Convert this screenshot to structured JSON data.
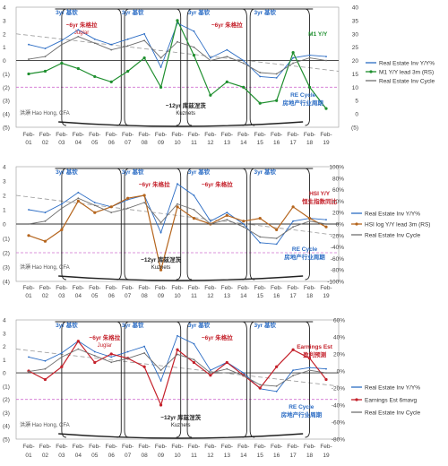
{
  "colors": {
    "blue": "#2b6cc4",
    "red": "#c4202a",
    "green": "#1f8f2f",
    "gray": "#6f6f6f",
    "brown": "#b5651d",
    "purple": "#8d2a8a",
    "pink": "#d070d0"
  },
  "chart_data": [
    {
      "type": "line",
      "x": [
        "Feb-01",
        "Feb-02",
        "Feb-03",
        "Feb-04",
        "Feb-05",
        "Feb-06",
        "Feb-07",
        "Feb-08",
        "Feb-09",
        "Feb-10",
        "Feb-11",
        "Feb-12",
        "Feb-13",
        "Feb-14",
        "Feb-15",
        "Feb-16",
        "Feb-17",
        "Feb-18",
        "Feb-19"
      ],
      "ylim_left": [
        -5,
        4
      ],
      "yticks_left": [
        "4",
        "3",
        "2",
        "1",
        "0",
        "(1)",
        "(2)",
        "(3)",
        "(4)",
        "(5)"
      ],
      "ylim_right": [
        -5,
        40
      ],
      "yticks_right": [
        "40",
        "35",
        "30",
        "25",
        "20",
        "15",
        "10",
        "5",
        "0",
        "(5)"
      ],
      "series": [
        {
          "name": "Real Estate Inv Y/Y%",
          "axis": "left",
          "values": [
            1.2,
            0.9,
            1.5,
            2.3,
            1.6,
            1.2,
            1.6,
            2.0,
            -0.5,
            2.8,
            2.2,
            0.2,
            0.8,
            0.0,
            -1.2,
            -1.3,
            0.2,
            0.4,
            0.3
          ]
        },
        {
          "name": "M1 Y/Y lead 3m (RS)",
          "axis": "right",
          "values": [
            15,
            16,
            19,
            17,
            14,
            12,
            16,
            21,
            10,
            35,
            22,
            7,
            12,
            10,
            4,
            5,
            23,
            10,
            2
          ]
        },
        {
          "name": "Real Estate Inv Cycle",
          "axis": "left",
          "values": [
            0.1,
            0.3,
            1.2,
            1.8,
            1.3,
            0.8,
            1.1,
            1.5,
            0.2,
            1.4,
            1.0,
            0.0,
            0.3,
            -0.2,
            -0.9,
            -1.0,
            -0.2,
            0.2,
            0.0
          ]
        }
      ],
      "trend": {
        "from": 2.0,
        "to": -0.8
      },
      "annotations": [
        {
          "text": "3yr 基钦",
          "x": 2.3
        },
        {
          "text": "3yr 基钦",
          "x": 6.3
        },
        {
          "text": "3yr 基钦",
          "x": 10.3
        },
        {
          "text": "3yr 基钦",
          "x": 14.3
        },
        {
          "text": "~6yr 朱格拉",
          "x": 3.2,
          "sub": "Juglar"
        },
        {
          "text": "~6yr 朱格拉",
          "x": 12.0,
          "sub": ""
        },
        {
          "text": "M1 Y/Y",
          "x": 17.5
        },
        {
          "text": "~12yr 库兹涅茨",
          "x": 9.5,
          "sub": "Kuznets"
        },
        {
          "text": "RE Cycle",
          "x": 16.6
        },
        {
          "text": "房地产行业周期",
          "x": 16.6
        }
      ],
      "author": "洪灝 Hao Hong, CFA"
    },
    {
      "type": "line",
      "x": [
        "Feb-01",
        "Feb-02",
        "Feb-03",
        "Feb-04",
        "Feb-05",
        "Feb-06",
        "Feb-07",
        "Feb-08",
        "Feb-09",
        "Feb-10",
        "Feb-11",
        "Feb-12",
        "Feb-13",
        "Feb-14",
        "Feb-15",
        "Feb-16",
        "Feb-17",
        "Feb-18",
        "Feb-19"
      ],
      "ylim_left": [
        -4,
        4
      ],
      "yticks_left": [
        "4",
        "3",
        "2",
        "1",
        "0",
        "(1)",
        "(2)",
        "(3)",
        "(4)"
      ],
      "ylim_right": [
        -100,
        100
      ],
      "yticks_right": [
        "100%",
        "80%",
        "60%",
        "40%",
        "20%",
        "0%",
        "-20%",
        "-40%",
        "-60%",
        "-80%",
        "-100%"
      ],
      "series": [
        {
          "name": "Real Estate Inv Y/Y%",
          "axis": "left",
          "values": [
            1.0,
            0.8,
            1.4,
            2.2,
            1.5,
            1.2,
            1.7,
            2.0,
            -0.6,
            2.8,
            2.0,
            0.2,
            0.8,
            0.0,
            -1.3,
            -1.4,
            0.2,
            0.4,
            0.3
          ]
        },
        {
          "name": "HSI log Y/Y lead 3m (RS)",
          "axis": "right",
          "values": [
            -20,
            -30,
            -10,
            40,
            20,
            30,
            45,
            50,
            -80,
            30,
            10,
            0,
            15,
            5,
            10,
            -10,
            30,
            10,
            -5
          ]
        },
        {
          "name": "Real Estate Inv Cycle",
          "axis": "left",
          "values": [
            0.0,
            0.2,
            1.1,
            1.8,
            1.3,
            0.8,
            1.1,
            1.5,
            0.1,
            1.4,
            1.0,
            0.0,
            0.3,
            -0.2,
            -0.9,
            -1.0,
            -0.2,
            0.2,
            0.0
          ]
        }
      ],
      "trend": {
        "from": 2.0,
        "to": -0.8
      },
      "annotations": [
        {
          "text": "3yr 基钦",
          "x": 2.3
        },
        {
          "text": "3yr 基钦",
          "x": 6.3
        },
        {
          "text": "3yr 基钦",
          "x": 10.3
        },
        {
          "text": "3yr 基钦",
          "x": 14.3
        },
        {
          "text": "~6yr 朱格拉",
          "x": 7.6
        },
        {
          "text": "~6yr 朱格拉",
          "x": 11.4
        },
        {
          "text": "HSI Y/Y",
          "x": 17.6
        },
        {
          "text": "恒生指数同比",
          "x": 17.6
        },
        {
          "text": "~12yr 库兹涅茨",
          "x": 8.0,
          "sub": "Kuznets"
        },
        {
          "text": "RE Cycle",
          "x": 16.7
        },
        {
          "text": "房地产行业周期",
          "x": 16.7
        }
      ],
      "author": "洪灝 Hao Hong, CFA"
    },
    {
      "type": "line",
      "x": [
        "Feb-01",
        "Feb-02",
        "Feb-03",
        "Feb-04",
        "Feb-05",
        "Feb-06",
        "Feb-07",
        "Feb-08",
        "Feb-09",
        "Feb-10",
        "Feb-11",
        "Feb-12",
        "Feb-13",
        "Feb-14",
        "Feb-15",
        "Feb-16",
        "Feb-17",
        "Feb-18",
        "Feb-19"
      ],
      "ylim_left": [
        -5,
        4
      ],
      "yticks_left": [
        "4",
        "3",
        "2",
        "1",
        "0",
        "(1)",
        "(2)",
        "(3)",
        "(4)",
        "(5)"
      ],
      "ylim_right": [
        -80,
        60
      ],
      "yticks_right": [
        "60%",
        "40%",
        "20%",
        "0%",
        "-20%",
        "-40%",
        "-60%",
        "-80%"
      ],
      "series": [
        {
          "name": "Real Estate Inv Y/Y%",
          "axis": "left",
          "values": [
            1.2,
            0.9,
            1.5,
            2.4,
            1.6,
            1.2,
            1.6,
            2.0,
            -0.6,
            2.8,
            2.2,
            0.2,
            0.8,
            0.0,
            -1.2,
            -1.4,
            0.2,
            0.4,
            0.3
          ]
        },
        {
          "name": "Earnings Est 6mavg",
          "axis": "right",
          "values": [
            0,
            -10,
            5,
            35,
            10,
            20,
            15,
            5,
            -40,
            25,
            10,
            -5,
            10,
            -5,
            -20,
            5,
            25,
            15,
            -10
          ]
        },
        {
          "name": "Real Estate Inv Cycle",
          "axis": "left",
          "values": [
            0.1,
            0.3,
            1.2,
            1.8,
            1.3,
            0.8,
            1.1,
            1.5,
            0.2,
            1.4,
            1.0,
            0.0,
            0.3,
            -0.2,
            -0.9,
            -1.0,
            -0.2,
            0.2,
            0.0
          ]
        }
      ],
      "trend": {
        "from": 1.8,
        "to": -1.0
      },
      "annotations": [
        {
          "text": "3yr 基钦",
          "x": 2.3
        },
        {
          "text": "3yr 基钦",
          "x": 6.3
        },
        {
          "text": "3yr 基钦",
          "x": 10.3
        },
        {
          "text": "3yr 基钦",
          "x": 14.3
        },
        {
          "text": "~6yr 朱格拉",
          "x": 4.6,
          "sub": "Juglar"
        },
        {
          "text": "~6yr 朱格拉",
          "x": 11.4
        },
        {
          "text": "Earnings Est",
          "x": 17.3
        },
        {
          "text": "盈利预测",
          "x": 17.3
        },
        {
          "text": "~12yr 库兹涅茨",
          "x": 9.2,
          "sub": "Kuznets"
        },
        {
          "text": "RE Cycle",
          "x": 16.5
        },
        {
          "text": "房地产行业周期",
          "x": 16.5
        }
      ],
      "author": "洪灝 Hao Hong, CFA"
    }
  ]
}
